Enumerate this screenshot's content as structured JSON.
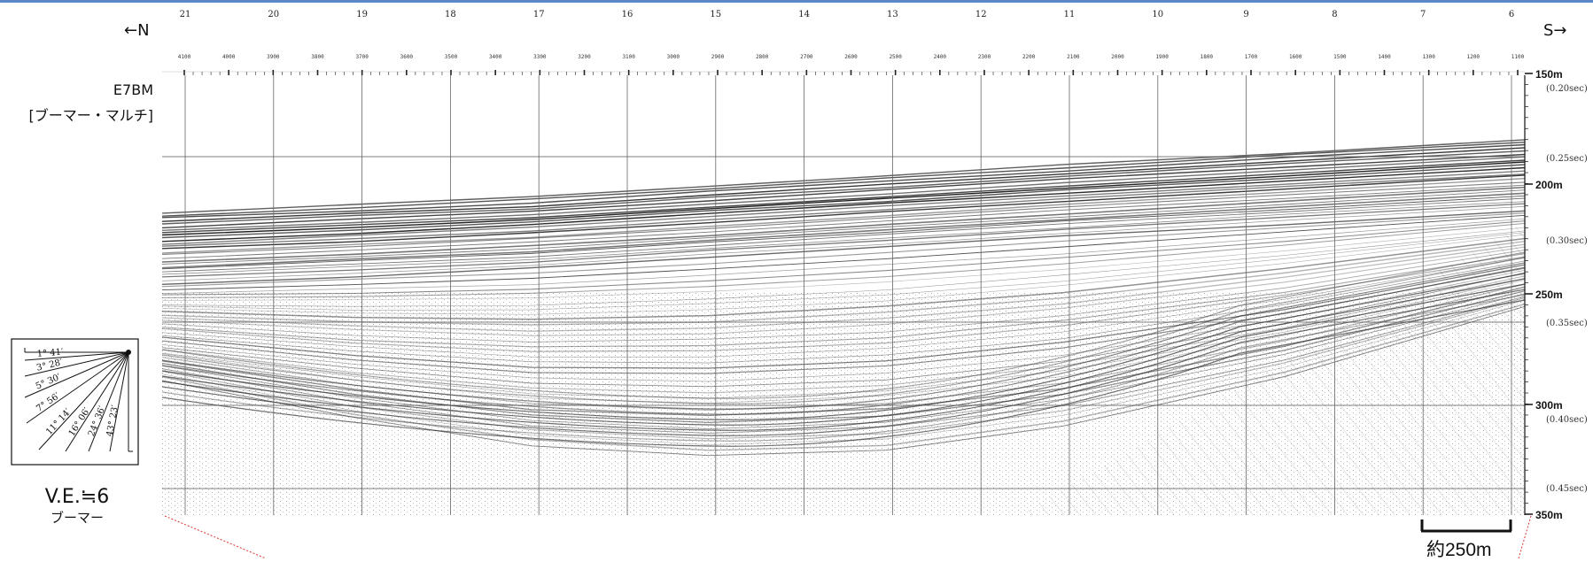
{
  "profile": {
    "north_label": "←N",
    "south_label": "S→",
    "line_name": "E7BM",
    "line_type": "[ブーマー・マルチ]",
    "stations": [
      "21",
      "20",
      "19",
      "18",
      "17",
      "16",
      "15",
      "14",
      "13",
      "12",
      "11",
      "10",
      "9",
      "8",
      "7",
      "6"
    ],
    "shots": [
      "4100",
      "4000",
      "3900",
      "3800",
      "3700",
      "3600",
      "3500",
      "3400",
      "3300",
      "3200",
      "3100",
      "3000",
      "2900",
      "2800",
      "2700",
      "2600",
      "2500",
      "2400",
      "2300",
      "2200",
      "2100",
      "2000",
      "1900",
      "1800",
      "1700",
      "1600",
      "1500",
      "1400",
      "1300",
      "1200",
      "1100"
    ],
    "depth_labels": [
      "150m",
      "200m",
      "250m",
      "300m",
      "350m"
    ],
    "time_labels": [
      "(0.20sec)",
      "(0.25sec)",
      "(0.30sec)",
      "(0.35sec)",
      "(0.40sec)",
      "(0.45sec)"
    ],
    "scale_label": "約250m"
  },
  "slope_legend": {
    "angles": [
      "1° 41′",
      "3° 28′",
      "5° 30′",
      "7° 56′",
      "11° 14′",
      "16° 06′",
      "24° 36′",
      "43° 23′"
    ],
    "ve_label": "V.E.≒6",
    "source_label": "ブーマー"
  }
}
